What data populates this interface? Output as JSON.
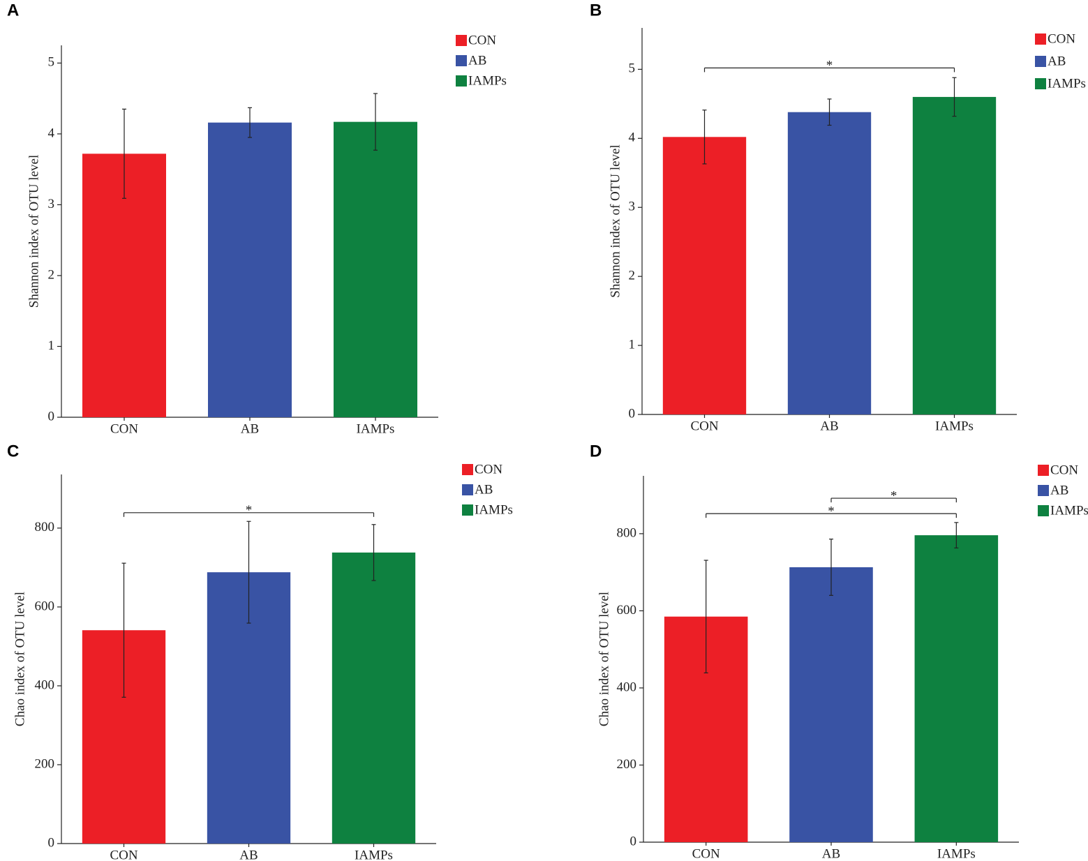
{
  "chart_data": [
    {
      "type": "bar",
      "panel": "A",
      "ylabel": "Shannon index of OTU level",
      "categories": [
        "CON",
        "AB",
        "IAMPs"
      ],
      "values": [
        3.72,
        4.16,
        4.17
      ],
      "errors": [
        0.63,
        0.21,
        0.4
      ],
      "colors": [
        "#ec1f26",
        "#3953a4",
        "#0e8140"
      ],
      "ylim": [
        0,
        5.25
      ],
      "yticks": [
        0,
        1,
        2,
        3,
        4,
        5
      ],
      "grid": false,
      "legend": "upper right",
      "significance": []
    },
    {
      "type": "bar",
      "panel": "B",
      "ylabel": "Shannon index of OTU level",
      "categories": [
        "CON",
        "AB",
        "IAMPs"
      ],
      "values": [
        4.02,
        4.38,
        4.6
      ],
      "errors": [
        0.39,
        0.19,
        0.28
      ],
      "colors": [
        "#ec1f26",
        "#3953a4",
        "#0e8140"
      ],
      "ylim": [
        0,
        5.6
      ],
      "yticks": [
        0,
        1,
        2,
        3,
        4,
        5
      ],
      "grid": false,
      "legend": "upper right",
      "significance": [
        {
          "from": 0,
          "to": 2,
          "y": 5.02,
          "label": "*"
        }
      ]
    },
    {
      "type": "bar",
      "panel": "C",
      "ylabel": "Chao index of OTU level",
      "categories": [
        "CON",
        "AB",
        "IAMPs"
      ],
      "values": [
        541,
        688,
        738
      ],
      "errors": [
        170,
        129,
        71
      ],
      "colors": [
        "#ec1f26",
        "#3953a4",
        "#0e8140"
      ],
      "ylim": [
        0,
        936
      ],
      "yticks": [
        0,
        200,
        400,
        600,
        800
      ],
      "grid": false,
      "legend": "upper right",
      "significance": [
        {
          "from": 0,
          "to": 2,
          "y": 839,
          "label": "*"
        }
      ]
    },
    {
      "type": "bar",
      "panel": "D",
      "ylabel": "Chao index of OTU level",
      "categories": [
        "CON",
        "AB",
        "IAMPs"
      ],
      "values": [
        585,
        713,
        796
      ],
      "errors": [
        146,
        73,
        33
      ],
      "colors": [
        "#ec1f26",
        "#3953a4",
        "#0e8140"
      ],
      "ylim": [
        0,
        950
      ],
      "yticks": [
        0,
        200,
        400,
        600,
        800
      ],
      "grid": false,
      "legend": "upper right",
      "significance": [
        {
          "from": 0,
          "to": 2,
          "y": 852,
          "label": "*"
        },
        {
          "from": 1,
          "to": 2,
          "y": 892,
          "label": "*"
        }
      ]
    }
  ]
}
